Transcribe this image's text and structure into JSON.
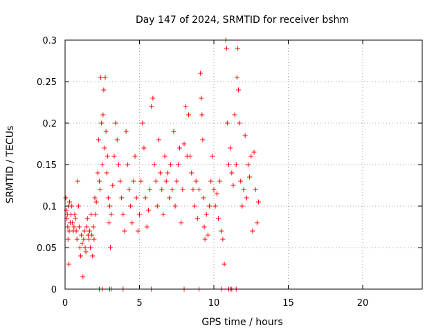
{
  "chart_data": {
    "type": "scatter",
    "title": "Day 147 of 2024, SRMTID for receiver bshm",
    "xlabel": "GPS time / hours",
    "ylabel": "SRMTID / TECUs",
    "xlim": [
      0,
      24
    ],
    "ylim": [
      0,
      0.3
    ],
    "xticks": [
      0,
      5,
      10,
      15,
      20
    ],
    "yticks": [
      0,
      0.05,
      0.1,
      0.15,
      0.2,
      0.25,
      0.3
    ],
    "ytick_labels": [
      "0",
      "0.05",
      "0.1",
      "0.15",
      "0.2",
      "0.25",
      "0.3"
    ],
    "grid": true,
    "marker": "+",
    "series": [
      {
        "name": "SRMTID",
        "color": "#ff0000",
        "points": [
          [
            0.05,
            0.11
          ],
          [
            0.08,
            0.095
          ],
          [
            0.12,
            0.085
          ],
          [
            0.15,
            0.09
          ],
          [
            0.18,
            0.075
          ],
          [
            0.2,
            0.06
          ],
          [
            0.22,
            0.1
          ],
          [
            0.25,
            0.03
          ],
          [
            0.28,
            0.07
          ],
          [
            0.3,
            0.105
          ],
          [
            0.35,
            0.08
          ],
          [
            0.4,
            0.09
          ],
          [
            0.45,
            0.1
          ],
          [
            0.5,
            0.08
          ],
          [
            0.55,
            0.07
          ],
          [
            0.6,
            0.075
          ],
          [
            0.65,
            0.09
          ],
          [
            0.7,
            0.085
          ],
          [
            0.75,
            0.07
          ],
          [
            0.8,
            0.06
          ],
          [
            0.85,
            0.13
          ],
          [
            0.9,
            0.1
          ],
          [
            0.95,
            0.075
          ],
          [
            1.0,
            0.05
          ],
          [
            1.05,
            0.04
          ],
          [
            1.1,
            0.065
          ],
          [
            1.15,
            0.055
          ],
          [
            1.2,
            0.015
          ],
          [
            1.25,
            0.06
          ],
          [
            1.3,
            0.07
          ],
          [
            1.35,
            0.05
          ],
          [
            1.4,
            0.045
          ],
          [
            1.45,
            0.075
          ],
          [
            1.5,
            0.085
          ],
          [
            1.55,
            0.065
          ],
          [
            1.6,
            0.06
          ],
          [
            1.65,
            0.07
          ],
          [
            1.7,
            0.05
          ],
          [
            1.75,
            0.09
          ],
          [
            1.8,
            0.065
          ],
          [
            1.85,
            0.04
          ],
          [
            1.9,
            0.075
          ],
          [
            1.95,
            0.06
          ],
          [
            2.0,
            0.11
          ],
          [
            2.05,
            0.09
          ],
          [
            2.1,
            0.105
          ],
          [
            2.2,
            0.14
          ],
          [
            2.25,
            0.18
          ],
          [
            2.3,
            0.13
          ],
          [
            2.35,
            0.12
          ],
          [
            2.4,
            0.255
          ],
          [
            2.45,
            0.2
          ],
          [
            2.5,
            0.15
          ],
          [
            2.55,
            0.21
          ],
          [
            2.6,
            0.24
          ],
          [
            2.65,
            0.17
          ],
          [
            2.7,
            0.255
          ],
          [
            2.75,
            0.19
          ],
          [
            2.8,
            0.14
          ],
          [
            2.85,
            0.16
          ],
          [
            2.9,
            0.11
          ],
          [
            2.95,
            0.08
          ],
          [
            3.0,
            0.1
          ],
          [
            3.05,
            0.05
          ],
          [
            3.1,
            0.09
          ],
          [
            3.2,
            0.125
          ],
          [
            3.3,
            0.16
          ],
          [
            3.4,
            0.2
          ],
          [
            3.5,
            0.18
          ],
          [
            3.6,
            0.15
          ],
          [
            3.7,
            0.13
          ],
          [
            3.8,
            0.11
          ],
          [
            3.9,
            0.09
          ],
          [
            4.0,
            0.07
          ],
          [
            4.1,
            0.19
          ],
          [
            4.2,
            0.15
          ],
          [
            4.3,
            0.12
          ],
          [
            4.4,
            0.1
          ],
          [
            4.5,
            0.08
          ],
          [
            4.6,
            0.13
          ],
          [
            4.7,
            0.16
          ],
          [
            4.8,
            0.11
          ],
          [
            4.9,
            0.07
          ],
          [
            5.0,
            0.09
          ],
          [
            5.1,
            0.13
          ],
          [
            5.2,
            0.2
          ],
          [
            5.3,
            0.17
          ],
          [
            5.4,
            0.11
          ],
          [
            5.5,
            0.075
          ],
          [
            5.6,
            0.095
          ],
          [
            5.7,
            0.12
          ],
          [
            5.8,
            0.22
          ],
          [
            5.9,
            0.23
          ],
          [
            6.0,
            0.15
          ],
          [
            6.1,
            0.13
          ],
          [
            6.2,
            0.1
          ],
          [
            6.3,
            0.18
          ],
          [
            6.4,
            0.14
          ],
          [
            6.5,
            0.12
          ],
          [
            6.6,
            0.09
          ],
          [
            6.7,
            0.16
          ],
          [
            6.8,
            0.13
          ],
          [
            6.9,
            0.14
          ],
          [
            7.0,
            0.11
          ],
          [
            7.1,
            0.15
          ],
          [
            7.2,
            0.12
          ],
          [
            7.3,
            0.19
          ],
          [
            7.4,
            0.1
          ],
          [
            7.5,
            0.13
          ],
          [
            7.6,
            0.15
          ],
          [
            7.7,
            0.17
          ],
          [
            7.8,
            0.08
          ],
          [
            7.9,
            0.12
          ],
          [
            8.0,
            0.175
          ],
          [
            8.1,
            0.22
          ],
          [
            8.2,
            0.16
          ],
          [
            8.3,
            0.21
          ],
          [
            8.4,
            0.16
          ],
          [
            8.5,
            0.14
          ],
          [
            8.6,
            0.12
          ],
          [
            8.7,
            0.1
          ],
          [
            8.8,
            0.13
          ],
          [
            8.9,
            0.085
          ],
          [
            9.0,
            0.12
          ],
          [
            9.1,
            0.26
          ],
          [
            9.15,
            0.23
          ],
          [
            9.2,
            0.21
          ],
          [
            9.25,
            0.18
          ],
          [
            9.3,
            0.11
          ],
          [
            9.35,
            0.075
          ],
          [
            9.4,
            0.06
          ],
          [
            9.5,
            0.09
          ],
          [
            9.6,
            0.065
          ],
          [
            9.7,
            0.1
          ],
          [
            9.8,
            0.13
          ],
          [
            9.9,
            0.16
          ],
          [
            10.0,
            0.12
          ],
          [
            10.1,
            0.1
          ],
          [
            10.2,
            0.115
          ],
          [
            10.3,
            0.085
          ],
          [
            10.4,
            0.13
          ],
          [
            10.5,
            0.07
          ],
          [
            10.6,
            0.06
          ],
          [
            10.7,
            0.03
          ],
          [
            10.8,
            0.3
          ],
          [
            10.85,
            0.29
          ],
          [
            10.9,
            0.2
          ],
          [
            11.0,
            0.15
          ],
          [
            11.1,
            0.17
          ],
          [
            11.2,
            0.14
          ],
          [
            11.3,
            0.125
          ],
          [
            11.4,
            0.21
          ],
          [
            11.5,
            0.15
          ],
          [
            11.55,
            0.255
          ],
          [
            11.6,
            0.29
          ],
          [
            11.65,
            0.24
          ],
          [
            11.7,
            0.2
          ],
          [
            11.8,
            0.13
          ],
          [
            11.9,
            0.1
          ],
          [
            12.0,
            0.12
          ],
          [
            12.1,
            0.185
          ],
          [
            12.2,
            0.11
          ],
          [
            12.3,
            0.15
          ],
          [
            12.4,
            0.135
          ],
          [
            12.5,
            0.16
          ],
          [
            12.6,
            0.07
          ],
          [
            12.7,
            0.165
          ],
          [
            12.8,
            0.12
          ],
          [
            12.9,
            0.08
          ],
          [
            13.0,
            0.105
          ],
          [
            2.3,
            0.0
          ],
          [
            2.5,
            0.0
          ],
          [
            3.0,
            0.0
          ],
          [
            3.1,
            0.0
          ],
          [
            3.9,
            0.0
          ],
          [
            5.8,
            0.0
          ],
          [
            8.0,
            0.0
          ],
          [
            9.0,
            0.0
          ],
          [
            10.5,
            0.0
          ],
          [
            11.0,
            0.0
          ],
          [
            11.1,
            0.0
          ],
          [
            11.2,
            0.0
          ],
          [
            11.5,
            0.0
          ]
        ]
      }
    ]
  }
}
